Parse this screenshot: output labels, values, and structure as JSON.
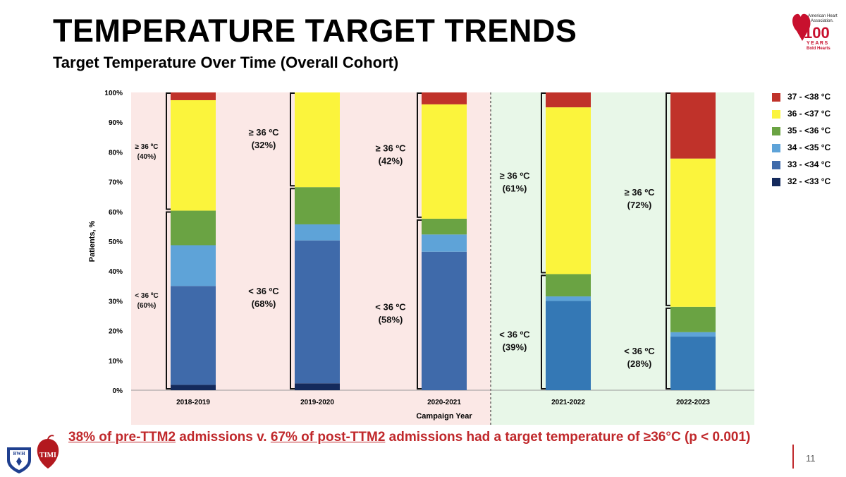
{
  "slide": {
    "title": "TEMPERATURE TARGET TRENDS",
    "subtitle": "Target Temperature Over Time (Overall Cohort)",
    "page_number": "11",
    "footer": {
      "part1": "38% of pre-TTM2",
      "part2": " admissions v. ",
      "part3": "67% of post-TTM2",
      "part4": " admissions had a target temperature of ≥36°C (p < 0.001)"
    },
    "logos": {
      "aha_line1": "American Heart",
      "aha_line2": "Association.",
      "aha_number": "100",
      "aha_years": "YEARS",
      "aha_tagline": "Bold Hearts",
      "bwh": "BWH",
      "timi": "TIMI"
    }
  },
  "colors": {
    "c32_33": "#142a5c",
    "c33_34": "#3f6aaa",
    "c33_34_post": "#3478b5",
    "c34_35": "#5ea3d8",
    "c35_36": "#6aa343",
    "c36_37": "#fbf43c",
    "c37_38": "#c0322a",
    "pre_bg": "#fbe8e6",
    "post_bg": "#e8f7e8",
    "footer": "#c0282b"
  },
  "chart_data": {
    "type": "bar",
    "stacked": true,
    "xlabel": "Campaign Year",
    "ylabel": "Patients, %",
    "ylim": [
      0,
      100
    ],
    "yticks": [
      "0%",
      "10%",
      "20%",
      "30%",
      "40%",
      "50%",
      "60%",
      "70%",
      "80%",
      "90%",
      "100%"
    ],
    "categories": [
      "2018-2019",
      "2019-2020",
      "2020-2021",
      "2021-2022",
      "2022-2023"
    ],
    "series": [
      {
        "name": "32 - <33 °C",
        "color": "#142a5c",
        "values": [
          1.8,
          2.3,
          0,
          0,
          0
        ]
      },
      {
        "name": "33 - <34 °C",
        "color": "#3f6aaa",
        "values": [
          33.2,
          48.0,
          46.5,
          30.0,
          18.0
        ]
      },
      {
        "name": "34 - <35 °C",
        "color": "#5ea3d8",
        "values": [
          13.7,
          5.4,
          5.8,
          1.5,
          1.5
        ]
      },
      {
        "name": "35 - <36 °C",
        "color": "#6aa343",
        "values": [
          11.6,
          12.5,
          5.3,
          7.5,
          8.5
        ]
      },
      {
        "name": "36 - <37 °C",
        "color": "#fbf43c",
        "values": [
          37.1,
          31.8,
          38.4,
          56.0,
          49.8
        ]
      },
      {
        "name": "37 - <38 °C",
        "color": "#c0322a",
        "values": [
          2.6,
          0,
          4.0,
          5.0,
          22.2
        ]
      }
    ],
    "legend_order": [
      "37 - <38 °C",
      "36 - <37 °C",
      "35 - <36 °C",
      "34 - <35 °C",
      "33 - <34 °C",
      "32 - <33 °C"
    ],
    "legend_position": "right",
    "groups": [
      {
        "range": [
          0,
          2
        ],
        "label": "pre-TTM2",
        "shade": "#fbe8e6"
      },
      {
        "range": [
          3,
          4
        ],
        "label": "post-TTM2",
        "shade": "#e8f7e8"
      }
    ],
    "bracket_annotations": [
      {
        "upper_line1": "≥ 36 ºC",
        "upper_line2": "(40%)",
        "lower_line1": "< 36 ºC",
        "lower_line2": "(60%)"
      },
      {
        "upper_line1": "≥ 36 ºC",
        "upper_line2": "(32%)",
        "lower_line1": "< 36 ºC",
        "lower_line2": "(68%)"
      },
      {
        "upper_line1": "≥ 36 ºC",
        "upper_line2": "(42%)",
        "lower_line1": "< 36 ºC",
        "lower_line2": "(58%)"
      },
      {
        "upper_line1": "≥ 36 ºC",
        "upper_line2": "(61%)",
        "lower_line1": "< 36 ºC",
        "lower_line2": "(39%)"
      },
      {
        "upper_line1": "≥ 36 ºC",
        "upper_line2": "(72%)",
        "lower_line1": "< 36 ºC",
        "lower_line2": "(28%)"
      }
    ],
    "grid": false
  }
}
